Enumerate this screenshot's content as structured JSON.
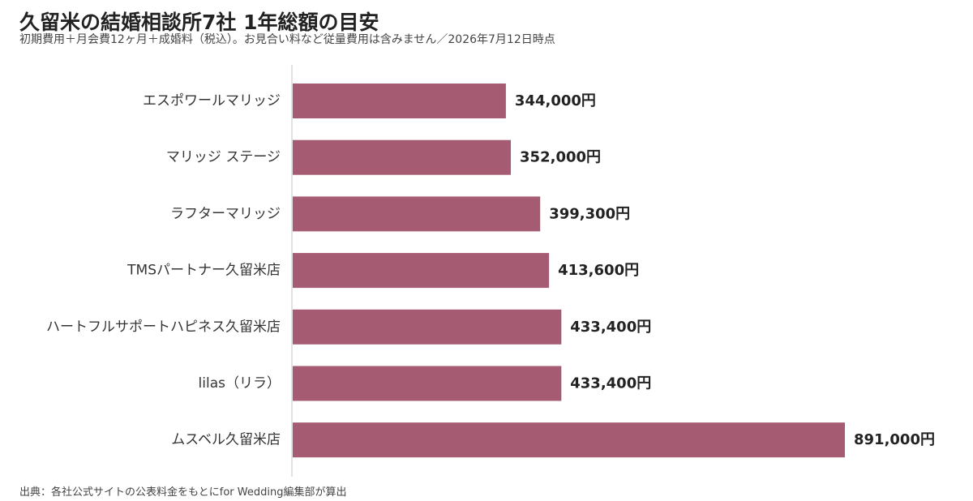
{
  "header": {
    "title": "久留米の結婚相談所7社 1年総額の目安",
    "subtitle": "初期費用＋月会費12ヶ月＋成婚料（税込）。お見合い料など従量費用は含みません／2026年7月12日時点"
  },
  "footer": {
    "source": "出典：各社公式サイトの公表料金をもとにfor Wedding編集部が算出"
  },
  "chart_data": {
    "type": "bar",
    "orientation": "horizontal",
    "categories": [
      "エスポワールマリッジ",
      "マリッジ ステージ",
      "ラフターマリッジ",
      "TMSパートナー久留米店",
      "ハートフルサポートハピネス久留米店",
      "lilas（リラ）",
      "ムスベル久留米店"
    ],
    "values": [
      344000,
      352000,
      399300,
      413600,
      433400,
      433400,
      891000
    ],
    "value_labels": [
      "344,000円",
      "352,000円",
      "399,300円",
      "413,600円",
      "433,400円",
      "433,400円",
      "891,000円"
    ],
    "xlim": [
      0,
      891000
    ],
    "bar_color": "#a55b72",
    "axis_color": "#d8d8d8",
    "grid": false,
    "legend": "none"
  }
}
